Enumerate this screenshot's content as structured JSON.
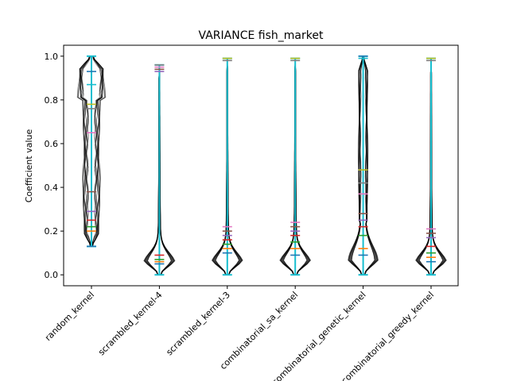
{
  "chart_data": {
    "type": "violin",
    "title": "VARIANCE fish_market",
    "xlabel": "",
    "ylabel": "Coefficient value",
    "ylim": [
      -0.05,
      1.05
    ],
    "yticks": [
      0.0,
      0.2,
      0.4,
      0.6,
      0.8,
      1.0
    ],
    "ytick_labels": [
      "0.0",
      "0.2",
      "0.4",
      "0.6",
      "0.8",
      "1.0"
    ],
    "categories": [
      "random_kernel",
      "scrambled_kernel-4",
      "scrambled_kernel-3",
      "combinatorial_sa_kernel",
      "combinatorial_genetic_kernel",
      "combinatorial_greedy_kernel"
    ],
    "series_colors": [
      "#1f77b4",
      "#ff7f0e",
      "#2ca02c",
      "#d62728",
      "#9467bd",
      "#8c564b",
      "#e377c2",
      "#7f7f7f",
      "#bcbd22",
      "#17becf"
    ],
    "groups": [
      {
        "name": "random_kernel",
        "min": 0.13,
        "max": 1.0,
        "shape": "spread",
        "medians": [
          0.13,
          0.2,
          0.22,
          0.25,
          0.29,
          0.38,
          0.65,
          0.76,
          0.78,
          0.87,
          0.93
        ]
      },
      {
        "name": "scrambled_kernel-4",
        "min": 0.0,
        "max": 0.96,
        "shape": "bottom",
        "medians": [
          0.05,
          0.06,
          0.07,
          0.09,
          0.93,
          0.94,
          0.95,
          0.96
        ]
      },
      {
        "name": "scrambled_kernel-3",
        "min": 0.0,
        "max": 0.99,
        "shape": "bottom",
        "medians": [
          0.1,
          0.12,
          0.14,
          0.16,
          0.18,
          0.2,
          0.22,
          0.98,
          0.99
        ]
      },
      {
        "name": "combinatorial_sa_kernel",
        "min": 0.0,
        "max": 0.99,
        "shape": "bottom",
        "medians": [
          0.09,
          0.12,
          0.15,
          0.18,
          0.2,
          0.22,
          0.24,
          0.98,
          0.99
        ]
      },
      {
        "name": "combinatorial_genetic_kernel",
        "min": 0.0,
        "max": 1.0,
        "shape": "tall",
        "medians": [
          0.09,
          0.12,
          0.18,
          0.22,
          0.25,
          0.28,
          0.37,
          0.42,
          0.48,
          0.99,
          1.0
        ]
      },
      {
        "name": "combinatorial_greedy_kernel",
        "min": 0.0,
        "max": 0.99,
        "shape": "bottom",
        "medians": [
          0.06,
          0.08,
          0.1,
          0.13,
          0.17,
          0.19,
          0.21,
          0.98,
          0.99
        ]
      }
    ]
  }
}
